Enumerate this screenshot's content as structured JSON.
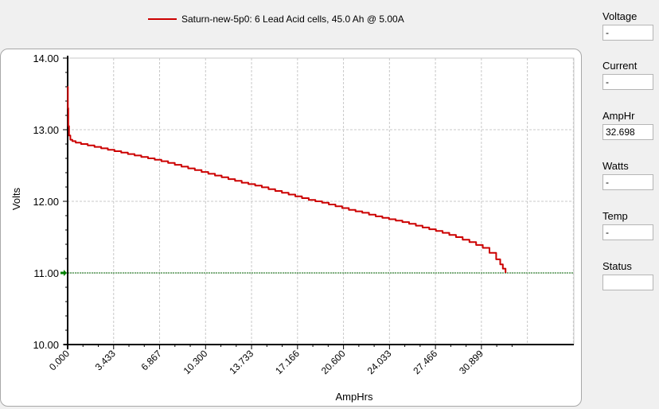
{
  "legend": {
    "label": "Saturn-new-5p0: 6 Lead Acid cells, 45.0 Ah @ 5.00A",
    "color": "#cc0000"
  },
  "readouts": {
    "voltage": {
      "label": "Voltage",
      "value": "-"
    },
    "current": {
      "label": "Current",
      "value": "-"
    },
    "amphr": {
      "label": "AmpHr",
      "value": "32.698"
    },
    "watts": {
      "label": "Watts",
      "value": "-"
    },
    "temp": {
      "label": "Temp",
      "value": "-"
    },
    "status": {
      "label": "Status",
      "value": ""
    }
  },
  "chart_data": {
    "type": "line",
    "xlabel": "AmpHrs",
    "ylabel": "Volts",
    "xlim": [
      0,
      37.8
    ],
    "ylim": [
      10.0,
      14.0
    ],
    "x_ticks": [
      "0.000",
      "3.433",
      "6.867",
      "10.300",
      "13.733",
      "17.166",
      "20.600",
      "24.033",
      "27.466",
      "30.899"
    ],
    "x_tick_values": [
      0,
      3.433,
      6.867,
      10.3,
      13.733,
      17.166,
      20.6,
      24.033,
      27.466,
      30.899
    ],
    "y_ticks": [
      "10.00",
      "11.00",
      "12.00",
      "13.00",
      "14.00"
    ],
    "y_tick_values": [
      10,
      11,
      12,
      13,
      14
    ],
    "grid": true,
    "cutoff": {
      "value": 11.0,
      "color": "#006400"
    },
    "series": [
      {
        "name": "Saturn-new-5p0: 6 Lead Acid cells, 45.0 Ah @ 5.00A",
        "color": "#cc0000",
        "x": [
          0,
          0.02,
          0.05,
          0.1,
          0.2,
          0.35,
          0.6,
          1,
          1.5,
          2,
          3,
          4,
          5,
          6,
          7,
          8,
          9,
          10,
          11,
          12,
          13,
          14,
          15,
          16,
          17,
          18,
          19,
          20,
          21,
          22,
          23,
          24,
          25,
          26,
          27,
          28,
          29,
          30,
          31,
          31.5,
          32,
          32.3,
          32.5,
          32.698
        ],
        "y": [
          13.6,
          13.3,
          13.05,
          12.92,
          12.86,
          12.84,
          12.82,
          12.8,
          12.78,
          12.76,
          12.72,
          12.68,
          12.64,
          12.6,
          12.56,
          12.51,
          12.46,
          12.41,
          12.36,
          12.31,
          12.26,
          12.22,
          12.17,
          12.12,
          12.07,
          12.02,
          11.98,
          11.93,
          11.88,
          11.84,
          11.79,
          11.75,
          11.71,
          11.66,
          11.61,
          11.56,
          11.5,
          11.43,
          11.35,
          11.28,
          11.19,
          11.12,
          11.06,
          11.0
        ]
      }
    ]
  }
}
